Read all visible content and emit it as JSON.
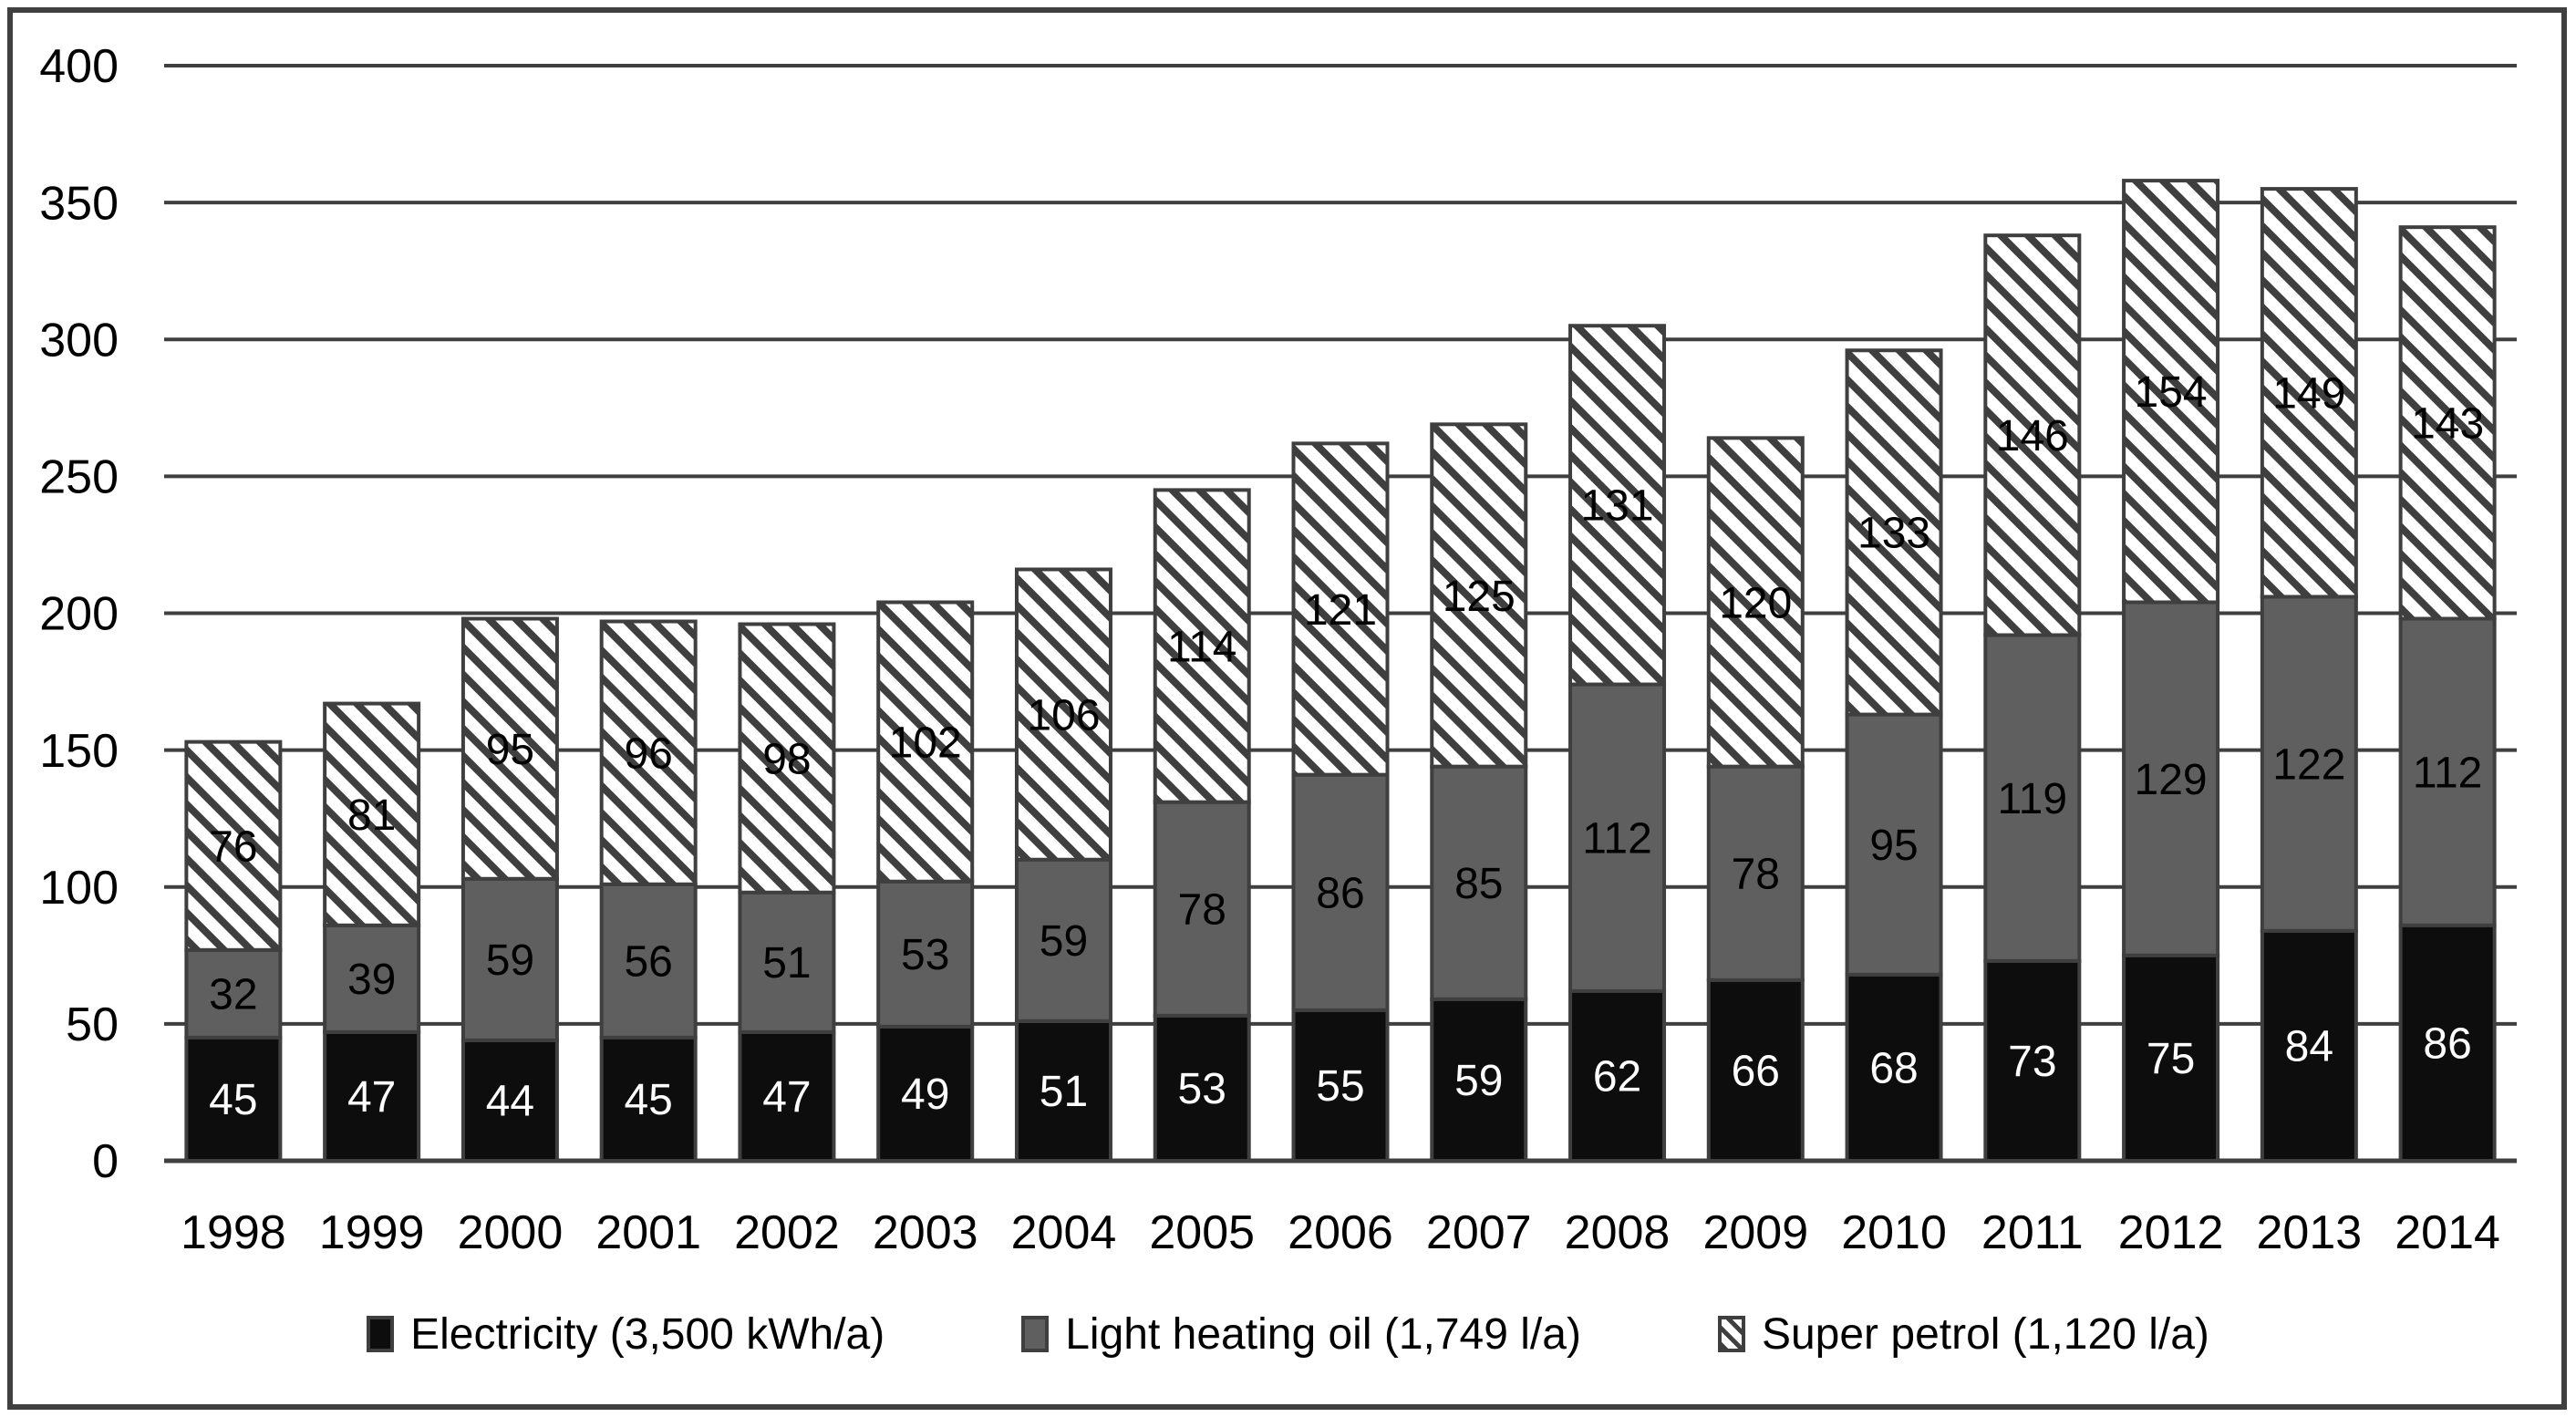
{
  "style": {
    "background": "#ffffff",
    "frame_border_color": "#404040",
    "grid_color": "#3f3f3f",
    "axis_line_color": "#3f3f3f",
    "text_color": "#000000"
  },
  "chart_data": {
    "type": "bar",
    "stacked": true,
    "title": "",
    "xlabel": "",
    "ylabel": "",
    "ylim": [
      0,
      400
    ],
    "ytick_step": 50,
    "yticks": [
      "0",
      "50",
      "100",
      "150",
      "200",
      "250",
      "300",
      "350",
      "400"
    ],
    "grid": true,
    "data_labels": true,
    "legend_position": "bottom",
    "categories": [
      "1998",
      "1999",
      "2000",
      "2001",
      "2002",
      "2003",
      "2004",
      "2005",
      "2006",
      "2007",
      "2008",
      "2009",
      "2010",
      "2011",
      "2012",
      "2013",
      "2014"
    ],
    "series": [
      {
        "name": "Electricity (3,500 kWh/a)",
        "pattern": "solid",
        "color": "#0d0d0d",
        "label_color": "#ffffff",
        "values": [
          45,
          47,
          44,
          45,
          47,
          49,
          51,
          53,
          55,
          59,
          62,
          66,
          68,
          73,
          75,
          84,
          86
        ]
      },
      {
        "name": "Light heating oil (1,749 l/a)",
        "pattern": "solid",
        "color": "#5f5f5f",
        "label_color": "#000000",
        "values": [
          32,
          39,
          59,
          56,
          51,
          53,
          59,
          78,
          86,
          85,
          112,
          78,
          95,
          119,
          129,
          122,
          112
        ]
      },
      {
        "name": "Super petrol (1,120 l/a)",
        "pattern": "diagonal-hatch",
        "color": "#ffffff",
        "hatch_color": "#3f3f3f",
        "label_color": "#000000",
        "values": [
          76,
          81,
          95,
          96,
          98,
          102,
          106,
          114,
          121,
          125,
          131,
          120,
          133,
          146,
          154,
          149,
          143
        ]
      }
    ],
    "totals": [
      153,
      167,
      198,
      197,
      196,
      204,
      216,
      245,
      262,
      269,
      305,
      264,
      296,
      338,
      358,
      355,
      341
    ]
  }
}
